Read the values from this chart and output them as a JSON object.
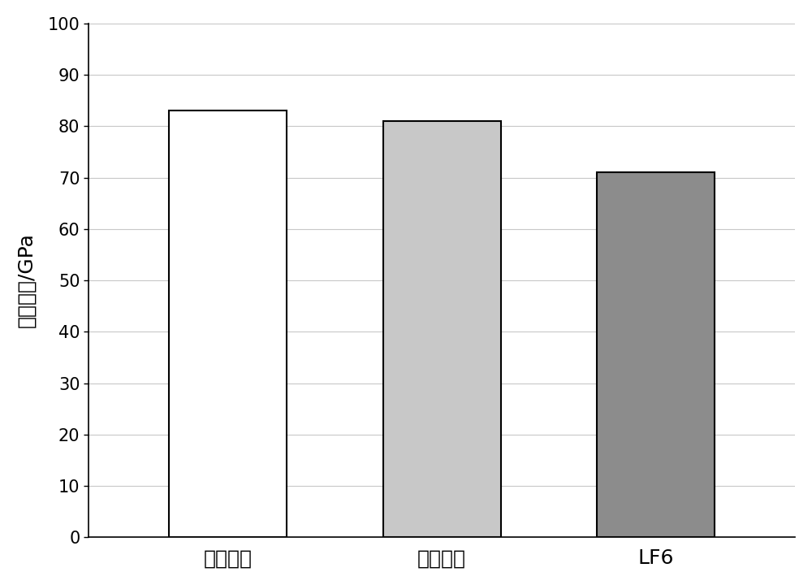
{
  "categories": [
    "实施例一",
    "实施例二",
    "LF6"
  ],
  "values": [
    83,
    81,
    71
  ],
  "bar_colors": [
    "#ffffff",
    "#c8c8c8",
    "#8c8c8c"
  ],
  "bar_edgecolors": [
    "#000000",
    "#000000",
    "#000000"
  ],
  "hatch_color": "#000000",
  "ylabel": "弹性模量/GPa",
  "ylim": [
    0,
    100
  ],
  "yticks": [
    0,
    10,
    20,
    30,
    40,
    50,
    60,
    70,
    80,
    90,
    100
  ],
  "grid_color": "#c8c8c8",
  "background_color": "#ffffff",
  "bar_width": 0.55,
  "ylabel_fontsize": 18,
  "tick_fontsize": 15,
  "xlabel_fontsize": 18
}
